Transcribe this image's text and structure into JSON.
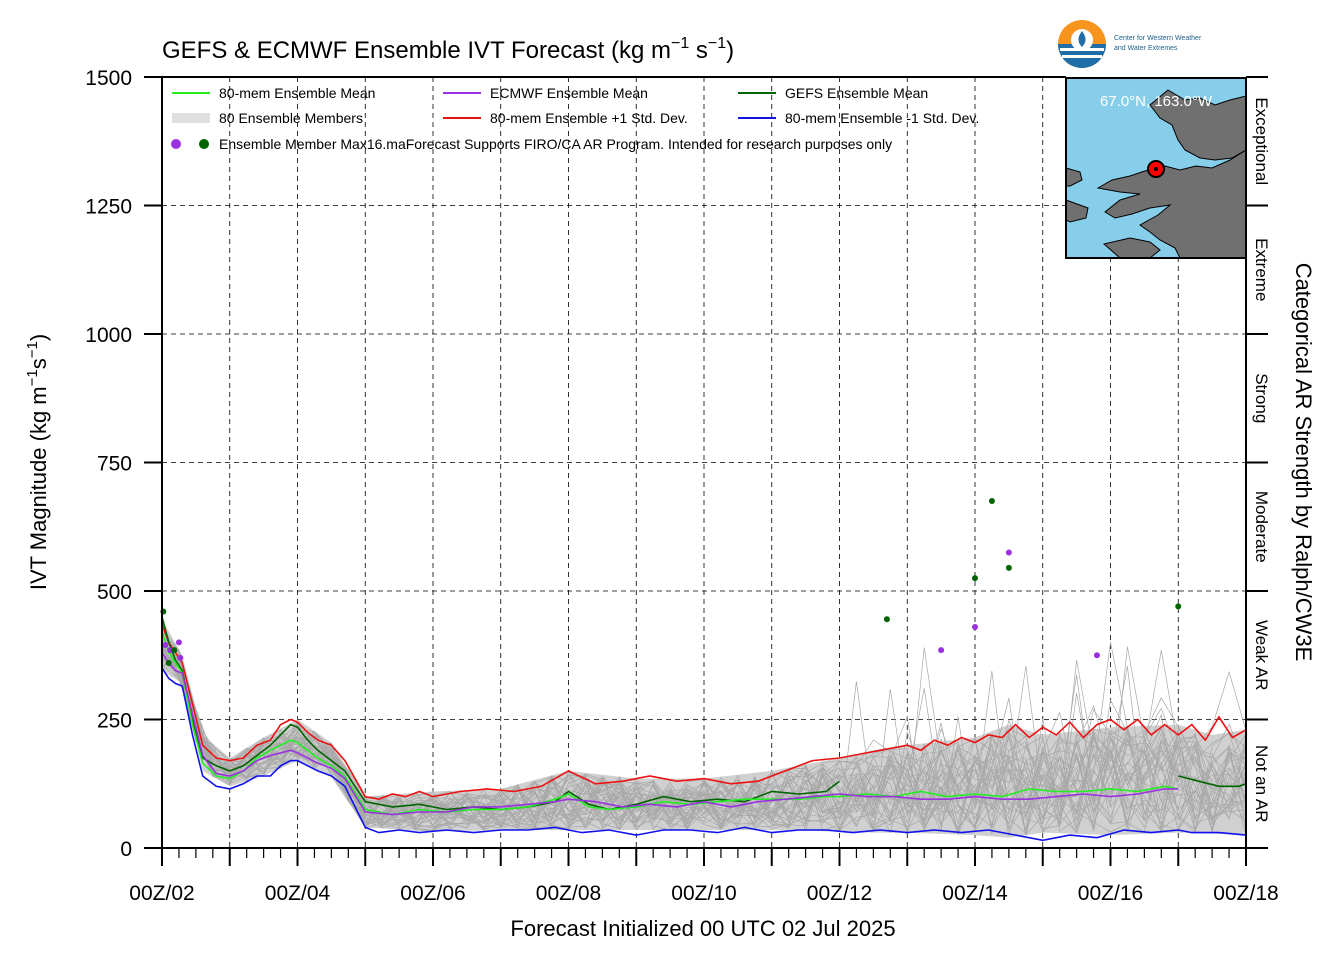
{
  "chart_data": {
    "type": "line",
    "title": "GEFS & ECMWF Ensemble IVT Forecast (kg m",
    "title_units": [
      "−1",
      " s",
      "−1",
      ")"
    ],
    "xlabel": "Forecast Initialized 00 UTC 02 Jul 2025",
    "ylabel": "IVT Magnitude (kg m",
    "ylabel_units": [
      "−1",
      "s",
      "−1",
      ")"
    ],
    "right_label": "Categorical AR Strength by Ralph/CW3E",
    "xlim": [
      0,
      16
    ],
    "ylim": [
      0,
      1500
    ],
    "x_ticks": [
      0,
      1,
      2,
      3,
      4,
      5,
      6,
      7,
      8,
      9,
      10,
      11,
      12,
      13,
      14,
      15,
      16
    ],
    "x_tick_labels": [
      "00Z/02",
      "",
      "00Z/04",
      "",
      "00Z/06",
      "",
      "00Z/08",
      "",
      "00Z/10",
      "",
      "00Z/12",
      "",
      "00Z/14",
      "",
      "00Z/16",
      "",
      "00Z/18"
    ],
    "y_ticks": [
      0,
      250,
      500,
      750,
      1000,
      1250,
      1500
    ],
    "grid": true,
    "legend_placement": "top-left",
    "categories_bands": [
      {
        "label": "Not an AR",
        "from": 0,
        "to": 250
      },
      {
        "label": "Weak AR",
        "from": 250,
        "to": 500
      },
      {
        "label": "Moderate",
        "from": 500,
        "to": 750
      },
      {
        "label": "Strong",
        "from": 750,
        "to": 1000
      },
      {
        "label": "Extreme",
        "from": 1000,
        "to": 1250
      },
      {
        "label": "Exceptional",
        "from": 1250,
        "to": 1500
      }
    ],
    "legend": [
      {
        "name": "80-mem Ensemble Mean",
        "color": "#22ee22"
      },
      {
        "name": "ECMWF Ensemble Mean",
        "color": "#9b30e0"
      },
      {
        "name": "GEFS Ensemble Mean",
        "color": "#006400"
      },
      {
        "name": "80 Ensemble Members",
        "color": "#aaaaaa"
      },
      {
        "name": "80-mem Ensemble +1 Std. Dev.",
        "color": "#ee1111"
      },
      {
        "name": "80-mem Ensemble -1 Std. Dev.",
        "color": "#1111ee"
      },
      {
        "name": "Ensemble Member Max",
        "color": "#9b30e0"
      }
    ],
    "legend_max_suffix": "16.maForecast Supports FIRO/CA AR Program. Intended for research purposes only",
    "series": [
      {
        "name": "80-mem Ensemble +1 Std. Dev.",
        "color": "#ee1111",
        "x": [
          0,
          0.1,
          0.2,
          0.3,
          0.45,
          0.6,
          0.8,
          1.0,
          1.2,
          1.4,
          1.6,
          1.75,
          1.9,
          2.0,
          2.15,
          2.3,
          2.5,
          2.7,
          3.0,
          3.2,
          3.4,
          3.6,
          3.8,
          4.0,
          4.4,
          4.8,
          5.2,
          5.6,
          6.0,
          6.4,
          6.8,
          7.2,
          7.6,
          8.0,
          8.4,
          8.8,
          9.2,
          9.6,
          10.0,
          10.2,
          10.4,
          10.6,
          10.8,
          11.0,
          11.2,
          11.4,
          11.6,
          11.8,
          12.0,
          12.2,
          12.4,
          12.6,
          12.8,
          13.0,
          13.2,
          13.4,
          13.6,
          13.8,
          14.0,
          14.2,
          14.4,
          14.6,
          14.8,
          15.0,
          15.2,
          15.4,
          15.6,
          15.8,
          16.0
        ],
        "y": [
          435,
          400,
          380,
          360,
          280,
          200,
          175,
          170,
          175,
          200,
          210,
          240,
          250,
          245,
          225,
          210,
          200,
          170,
          100,
          95,
          105,
          100,
          110,
          100,
          110,
          115,
          110,
          120,
          150,
          125,
          130,
          140,
          130,
          135,
          125,
          130,
          150,
          170,
          175,
          180,
          185,
          190,
          195,
          200,
          190,
          210,
          200,
          215,
          205,
          220,
          215,
          240,
          215,
          235,
          220,
          245,
          215,
          240,
          250,
          230,
          250,
          220,
          240,
          220,
          240,
          210,
          255,
          215,
          230
        ]
      },
      {
        "name": "GEFS Ensemble Mean",
        "color": "#006400",
        "x": [
          0,
          0.1,
          0.2,
          0.3,
          0.45,
          0.6,
          0.8,
          1.0,
          1.2,
          1.4,
          1.6,
          1.75,
          1.9,
          2.0,
          2.15,
          2.3,
          2.5,
          2.7,
          3.0,
          3.4,
          3.8,
          4.2,
          4.6,
          5.0,
          5.4,
          5.8,
          6.0,
          6.3,
          6.6,
          7.0,
          7.4,
          7.8,
          8.2,
          8.6,
          9.0,
          9.4,
          9.8,
          10.0
        ],
        "y": [
          450,
          400,
          365,
          345,
          250,
          175,
          160,
          150,
          160,
          180,
          200,
          220,
          240,
          235,
          210,
          190,
          170,
          150,
          90,
          80,
          85,
          75,
          80,
          75,
          80,
          90,
          110,
          85,
          75,
          85,
          100,
          90,
          95,
          90,
          110,
          105,
          110,
          130
        ]
      },
      {
        "name": "GEFS Ensemble Mean tail",
        "color": "#006400",
        "x": [
          15.0,
          15.3,
          15.6,
          15.9,
          16.0
        ],
        "y": [
          140,
          130,
          120,
          120,
          125
        ]
      },
      {
        "name": "80-mem Ensemble Mean",
        "color": "#22ee22",
        "x": [
          0,
          0.1,
          0.2,
          0.3,
          0.45,
          0.6,
          0.8,
          1.0,
          1.2,
          1.4,
          1.6,
          1.75,
          1.9,
          2.0,
          2.15,
          2.3,
          2.5,
          2.7,
          3.0,
          3.4,
          3.8,
          4.2,
          4.6,
          5.0,
          5.4,
          5.8,
          6.0,
          6.3,
          6.6,
          7.0,
          7.4,
          7.8,
          8.2,
          8.6,
          9.0,
          9.4,
          9.8,
          10.0,
          10.4,
          10.8,
          11.2,
          11.6,
          12.0,
          12.4,
          12.8,
          13.2,
          13.6,
          14.0,
          14.4,
          14.8,
          15.0
        ],
        "y": [
          420,
          380,
          360,
          340,
          240,
          165,
          140,
          135,
          150,
          175,
          190,
          200,
          210,
          205,
          190,
          175,
          160,
          140,
          75,
          65,
          75,
          70,
          75,
          75,
          80,
          95,
          105,
          80,
          75,
          80,
          90,
          85,
          90,
          95,
          95,
          95,
          100,
          100,
          105,
          100,
          110,
          100,
          105,
          100,
          115,
          110,
          110,
          115,
          110,
          120,
          115
        ]
      },
      {
        "name": "ECMWF Ensemble Mean",
        "color": "#9b30e0",
        "x": [
          0,
          0.1,
          0.2,
          0.3,
          0.45,
          0.6,
          0.8,
          1.0,
          1.2,
          1.4,
          1.6,
          1.75,
          1.9,
          2.0,
          2.15,
          2.3,
          2.5,
          2.7,
          3.0,
          3.4,
          3.8,
          4.2,
          4.6,
          5.0,
          5.4,
          5.8,
          6.0,
          6.4,
          6.8,
          7.2,
          7.6,
          8.0,
          8.4,
          8.8,
          9.2,
          9.6,
          10.0,
          10.4,
          10.8,
          11.2,
          11.6,
          12.0,
          12.4,
          12.8,
          13.2,
          13.6,
          14.0,
          14.4,
          14.8,
          15.0
        ],
        "y": [
          380,
          360,
          345,
          340,
          260,
          180,
          145,
          140,
          150,
          170,
          180,
          185,
          190,
          185,
          175,
          165,
          155,
          135,
          70,
          65,
          70,
          70,
          80,
          80,
          85,
          90,
          95,
          90,
          80,
          85,
          80,
          90,
          80,
          90,
          95,
          100,
          105,
          100,
          100,
          95,
          95,
          100,
          95,
          95,
          100,
          105,
          100,
          105,
          115,
          115
        ]
      },
      {
        "name": "80-mem Ensemble -1 Std. Dev.",
        "color": "#1111ee",
        "x": [
          0,
          0.1,
          0.2,
          0.3,
          0.45,
          0.6,
          0.8,
          1.0,
          1.2,
          1.4,
          1.6,
          1.75,
          1.9,
          2.0,
          2.15,
          2.3,
          2.5,
          2.7,
          3.0,
          3.2,
          3.5,
          3.8,
          4.2,
          4.6,
          5.0,
          5.4,
          5.8,
          6.2,
          6.6,
          7.0,
          7.4,
          7.8,
          8.2,
          8.6,
          9.0,
          9.4,
          9.8,
          10.2,
          10.6,
          11.0,
          11.4,
          11.8,
          12.2,
          12.6,
          13.0,
          13.4,
          13.8,
          14.2,
          14.6,
          15.0,
          15.2,
          15.6,
          16.0
        ],
        "y": [
          350,
          330,
          320,
          315,
          220,
          140,
          120,
          115,
          125,
          140,
          140,
          160,
          170,
          170,
          160,
          150,
          140,
          120,
          40,
          30,
          35,
          30,
          35,
          30,
          35,
          35,
          40,
          30,
          35,
          25,
          35,
          35,
          30,
          40,
          30,
          35,
          35,
          30,
          35,
          30,
          35,
          30,
          35,
          25,
          15,
          25,
          20,
          35,
          30,
          35,
          30,
          30,
          25
        ]
      }
    ],
    "scatter_ecmwf": {
      "color": "#9b30e0",
      "x": [
        0.05,
        0.12,
        0.25,
        0.27,
        11.5,
        12.0,
        12.5,
        13.8
      ],
      "y": [
        395,
        385,
        400,
        370,
        385,
        430,
        575,
        375
      ]
    },
    "scatter_gefs": {
      "color": "#006400",
      "x": [
        0.02,
        0.1,
        0.18,
        10.7,
        12.0,
        12.25,
        12.5,
        15.0
      ],
      "y": [
        460,
        360,
        385,
        445,
        525,
        675,
        545,
        470
      ]
    },
    "band_x": [
      0,
      0.3,
      0.6,
      1.0,
      1.5,
      2.0,
      2.5,
      3.0,
      4.0,
      5.0,
      6.0,
      7.0,
      8.0,
      9.0,
      10.0,
      10.5,
      11.0,
      12.0,
      12.5,
      13.0,
      14.0,
      15.0,
      15.5,
      16.0
    ],
    "band_upper": [
      445,
      375,
      220,
      175,
      215,
      250,
      205,
      100,
      110,
      115,
      150,
      135,
      135,
      150,
      175,
      190,
      200,
      215,
      240,
      220,
      235,
      240,
      220,
      230
    ],
    "band_lower": [
      345,
      320,
      150,
      120,
      140,
      170,
      140,
      40,
      32,
      35,
      35,
      35,
      35,
      35,
      32,
      30,
      30,
      25,
      20,
      30,
      25,
      30,
      28,
      25
    ]
  },
  "inset": {
    "location_label": "67.0°N, 163.0°W",
    "land_color": "#707070",
    "water_color": "#87ceeb",
    "marker_color": "#ff0000"
  },
  "logo": {
    "line1": "Center for Western Weather",
    "line2": "and Water Extremes"
  }
}
